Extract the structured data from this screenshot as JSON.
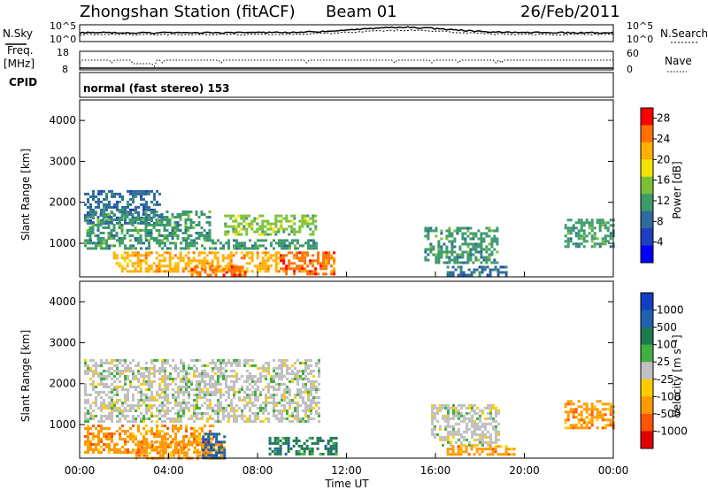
{
  "header": {
    "title": "Zhongshan Station (fitACF)",
    "beam": "Beam 01",
    "date": "26/Feb/2011"
  },
  "top_panels": {
    "noise_left_label": "N.Sky",
    "noise_right_label": "N.Search",
    "noise_ticks_left": [
      "10^5",
      "10^0"
    ],
    "noise_ticks_right": [
      "10^5",
      "10^0"
    ],
    "freq_label_line1": "Freq.",
    "freq_label_line2": "[MHz]",
    "freq_ticks": [
      "18",
      "8"
    ],
    "nave_label": "Nave",
    "nave_ticks": [
      "60",
      "0"
    ],
    "cpid_label": "CPID",
    "cpid_text": "normal (fast stereo) 153"
  },
  "colors": {
    "power_scale": [
      "#0000ff",
      "#1e3fbf",
      "#2e6a9b",
      "#3d9a6d",
      "#7cc03a",
      "#f5e000",
      "#ffb000",
      "#ff7000",
      "#ff0000"
    ],
    "velocity_scale": [
      "#1040c0",
      "#2060b0",
      "#1f7a50",
      "#40b040",
      "#c0c0c0",
      "#ffcc00",
      "#ff9900",
      "#ff5500",
      "#e00000"
    ]
  },
  "chart_data": [
    {
      "type": "heatmap",
      "panel": "power",
      "title": "",
      "xlabel": "Time UT",
      "ylabel": "Slant Range [km]",
      "x_ticks": [
        "00:00",
        "04:00",
        "08:00",
        "12:00",
        "16:00",
        "20:00",
        "00:00"
      ],
      "y_ticks": [
        "1000",
        "2000",
        "3000",
        "4000"
      ],
      "xlim": [
        0,
        24
      ],
      "ylim": [
        180,
        4500
      ],
      "colorbar_label": "Power [dB]",
      "colorbar_ticks": [
        "4",
        "8",
        "12",
        "16",
        "20",
        "24",
        "28"
      ],
      "colorbar_range": [
        0,
        30
      ],
      "regions": [
        {
          "t": [
            0.2,
            3.6
          ],
          "r": [
            1500,
            2300
          ],
          "value": 8
        },
        {
          "t": [
            0.3,
            5.8
          ],
          "r": [
            1100,
            1800
          ],
          "value": 12
        },
        {
          "t": [
            0.2,
            10.8
          ],
          "r": [
            900,
            1100
          ],
          "value": 10
        },
        {
          "t": [
            1.5,
            9.0
          ],
          "r": [
            300,
            800
          ],
          "value": 22
        },
        {
          "t": [
            5.0,
            7.5
          ],
          "r": [
            200,
            450
          ],
          "value": 28
        },
        {
          "t": [
            6.5,
            10.6
          ],
          "r": [
            1200,
            1700
          ],
          "value": 14
        },
        {
          "t": [
            9.0,
            11.5
          ],
          "r": [
            250,
            800
          ],
          "value": 26
        },
        {
          "t": [
            15.5,
            18.8
          ],
          "r": [
            500,
            1400
          ],
          "value": 12
        },
        {
          "t": [
            16.5,
            19.2
          ],
          "r": [
            250,
            450
          ],
          "value": 8
        },
        {
          "t": [
            21.8,
            24.0
          ],
          "r": [
            900,
            1600
          ],
          "value": 10
        }
      ]
    },
    {
      "type": "heatmap",
      "panel": "velocity",
      "title": "",
      "xlabel": "Time UT",
      "ylabel": "Slant Range [km]",
      "x_ticks": [
        "00:00",
        "04:00",
        "08:00",
        "12:00",
        "16:00",
        "20:00",
        "00:00"
      ],
      "y_ticks": [
        "1000",
        "2000",
        "3000",
        "4000"
      ],
      "xlim": [
        0,
        24
      ],
      "ylim": [
        180,
        4500
      ],
      "colorbar_label": "Velocity [m s⁻¹]",
      "colorbar_ticks": [
        "1000",
        "500",
        "100",
        "25",
        "-25",
        "-100",
        "-500",
        "-1000"
      ],
      "regions": [
        {
          "t": [
            0.2,
            10.8
          ],
          "r": [
            1100,
            2600
          ],
          "value": 0
        },
        {
          "t": [
            0.2,
            6.0
          ],
          "r": [
            300,
            1000
          ],
          "value": -150
        },
        {
          "t": [
            2.5,
            6.5
          ],
          "r": [
            200,
            600
          ],
          "value": -300
        },
        {
          "t": [
            5.5,
            6.5
          ],
          "r": [
            200,
            800
          ],
          "value": 600
        },
        {
          "t": [
            8.5,
            11.5
          ],
          "r": [
            300,
            700
          ],
          "value": 200
        },
        {
          "t": [
            15.8,
            18.8
          ],
          "r": [
            500,
            1500
          ],
          "value": 0
        },
        {
          "t": [
            16.5,
            19.5
          ],
          "r": [
            250,
            500
          ],
          "value": -120
        },
        {
          "t": [
            21.8,
            24.0
          ],
          "r": [
            900,
            1600
          ],
          "value": -200
        }
      ]
    }
  ]
}
